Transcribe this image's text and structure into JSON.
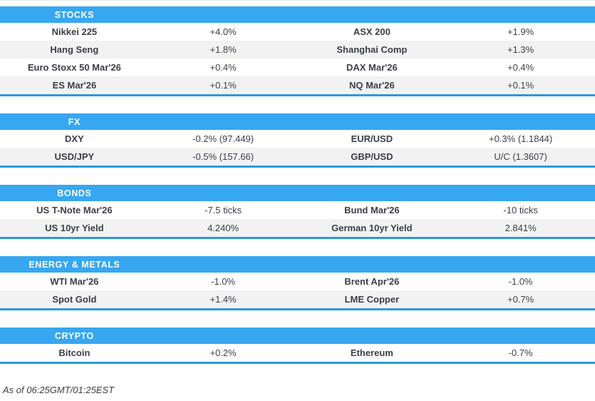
{
  "colors": {
    "accent_blue": "#36a7f0",
    "section_border_blue": "#2b99de",
    "row_alt_gray": "#f2f2f3",
    "text_dark": "#3c3f47"
  },
  "sections": [
    {
      "title": "STOCKS",
      "rows": [
        [
          "Nikkei 225",
          "+4.0%",
          "ASX 200",
          "+1.9%"
        ],
        [
          "Hang Seng",
          "+1.8%",
          "Shanghai Comp",
          "+1.3%"
        ],
        [
          "Euro Stoxx 50 Mar'26",
          "+0.4%",
          "DAX Mar'26",
          "+0.4%"
        ],
        [
          "ES Mar'26",
          "+0.1%",
          "NQ Mar'26",
          "+0.1%"
        ]
      ]
    },
    {
      "title": "FX",
      "rows": [
        [
          "DXY",
          "-0.2% (97.449)",
          "EUR/USD",
          "+0.3% (1.1844)"
        ],
        [
          "USD/JPY",
          "-0.5% (157.66)",
          "GBP/USD",
          "U/C (1.3607)"
        ]
      ]
    },
    {
      "title": "BONDS",
      "rows": [
        [
          "US T-Note Mar'26",
          "-7.5 ticks",
          "Bund Mar'26",
          "-10 ticks"
        ],
        [
          "US 10yr Yield",
          "4.240%",
          "German 10yr Yield",
          "2.841%"
        ]
      ]
    },
    {
      "title": "ENERGY & METALS",
      "rows": [
        [
          "WTI Mar'26",
          "-1.0%",
          "Brent Apr'26",
          "-1.0%"
        ],
        [
          "Spot Gold",
          "+1.4%",
          "LME Copper",
          "+0.7%"
        ]
      ]
    },
    {
      "title": "CRYPTO",
      "rows": [
        [
          "Bitcoin",
          "+0.2%",
          "Ethereum",
          "-0.7%"
        ]
      ]
    }
  ],
  "footer": {
    "as_of": "As of 06:25GMT/01:25EST"
  }
}
